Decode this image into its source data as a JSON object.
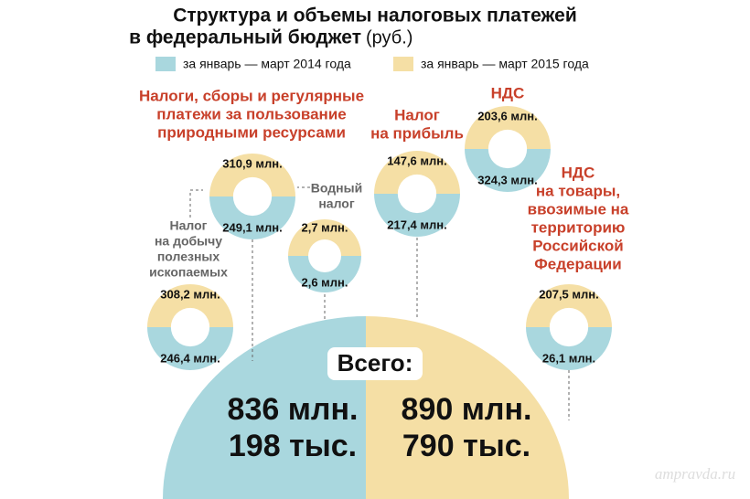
{
  "title": {
    "line1": "Структура и объемы налоговых платежей",
    "line2": "в федеральный бюджет",
    "unit": "(руб.)"
  },
  "legend": [
    {
      "label": "за январь — март 2014 года",
      "color": "#a9d7de"
    },
    {
      "label": "за январь — март 2015 года",
      "color": "#f5dfa5"
    }
  ],
  "rings": [
    {
      "label": [
        "Налоги, сборы и регулярные",
        "платежи за пользование",
        "природными ресурсами"
      ],
      "top": "310,9 млн.",
      "bottom": "249,1 млн."
    },
    {
      "label": [
        "Водный",
        "налог"
      ],
      "top": "2,7 млн.",
      "bottom": "2,6 млн."
    },
    {
      "label": [
        "Налог",
        "на добычу",
        "полезных",
        "ископаемых"
      ],
      "top": "308,2 млн.",
      "bottom": "246,4 млн."
    },
    {
      "label": [
        "Налог",
        "на прибыль"
      ],
      "top": "147,6 млн.",
      "bottom": "217,4 млн."
    },
    {
      "label": [
        "НДС"
      ],
      "top": "203,6 млн.",
      "bottom": "324,3 млн."
    },
    {
      "label": [
        "НДС",
        "на товары,",
        "ввозимые на",
        "территорию",
        "Российской",
        "Федерации"
      ],
      "top": "207,5 млн.",
      "bottom": "26,1 млн."
    }
  ],
  "total": {
    "label": "Всего:",
    "left": [
      "836 млн.",
      "198 тыс."
    ],
    "right": [
      "890 млн.",
      "790 тыс."
    ]
  },
  "watermark": "ampravda.ru"
}
